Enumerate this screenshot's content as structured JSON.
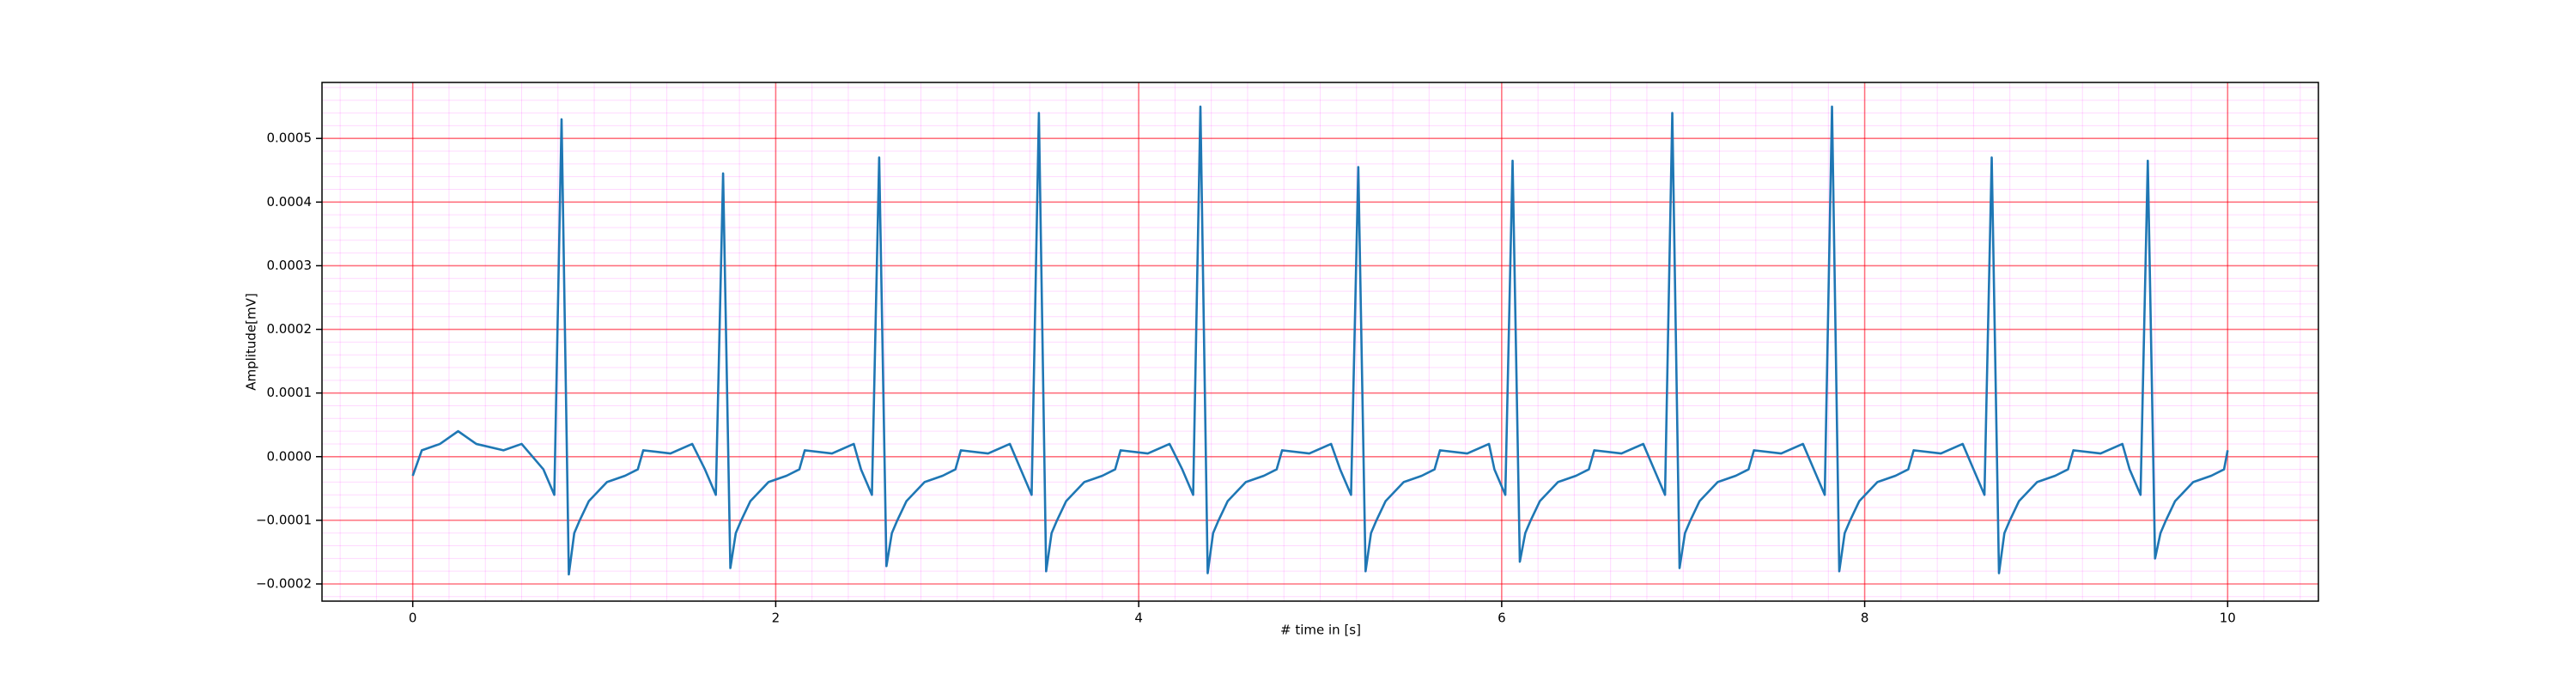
{
  "chart_data": {
    "type": "line",
    "x_label": "# time in [s]",
    "y_label": "Amplitude[mV]",
    "xlim": [
      -0.5,
      10.5
    ],
    "ylim": [
      -0.000227,
      0.000588
    ],
    "xticks": [
      0,
      2,
      4,
      6,
      8,
      10
    ],
    "yticks": [
      {
        "value": -0.0002,
        "label": "−0.0002"
      },
      {
        "value": -0.0001,
        "label": "−0.0001"
      },
      {
        "value": 0,
        "label": "0.0000"
      },
      0.0001,
      0.0002,
      0.0003,
      0.0004,
      0.0005
    ],
    "grid": true,
    "grid_color": "#ff0000",
    "minor_grid": {
      "x": 0.2,
      "y": 2e-05,
      "color": "#ff00ff"
    },
    "series": [
      {
        "color": "#1f77b4",
        "x": [
          0,
          0.05,
          0.15,
          0.25,
          0.35,
          0.5,
          0.6,
          0.72,
          0.78,
          0.82,
          0.86,
          0.89,
          0.92,
          0.97,
          1.07,
          1.17,
          1.24,
          1.27,
          1.42,
          1.54,
          1.61,
          1.67,
          1.71,
          1.75,
          1.78,
          1.81,
          1.86,
          1.96,
          2.06,
          2.13,
          2.16,
          2.31,
          2.43,
          2.47,
          2.53,
          2.57,
          2.61,
          2.64,
          2.67,
          2.72,
          2.82,
          2.92,
          2.99,
          3.02,
          3.17,
          3.29,
          3.35,
          3.41,
          3.45,
          3.49,
          3.52,
          3.55,
          3.6,
          3.7,
          3.8,
          3.87,
          3.9,
          4.05,
          4.17,
          4.24,
          4.3,
          4.34,
          4.38,
          4.41,
          4.44,
          4.49,
          4.59,
          4.69,
          4.76,
          4.79,
          4.94,
          5.06,
          5.11,
          5.17,
          5.21,
          5.25,
          5.28,
          5.31,
          5.36,
          5.46,
          5.56,
          5.63,
          5.66,
          5.81,
          5.93,
          5.96,
          6.02,
          6.06,
          6.1,
          6.13,
          6.16,
          6.21,
          6.31,
          6.41,
          6.48,
          6.51,
          6.66,
          6.78,
          6.84,
          6.9,
          6.94,
          6.98,
          7.01,
          7.04,
          7.09,
          7.19,
          7.29,
          7.36,
          7.39,
          7.54,
          7.66,
          7.72,
          7.78,
          7.82,
          7.86,
          7.89,
          7.92,
          7.97,
          8.07,
          8.17,
          8.24,
          8.27,
          8.42,
          8.54,
          8.6,
          8.66,
          8.7,
          8.74,
          8.77,
          8.8,
          8.85,
          8.95,
          9.05,
          9.12,
          9.15,
          9.3,
          9.42,
          9.46,
          9.52,
          9.56,
          9.6,
          9.63,
          9.66,
          9.71,
          9.81,
          9.91,
          9.98,
          10.0
        ],
        "values": [
          -3e-05,
          1e-05,
          2e-05,
          4e-05,
          2e-05,
          1e-05,
          2e-05,
          -2e-05,
          -6e-05,
          0.00053,
          -0.000185,
          -0.00012,
          -0.0001,
          -7e-05,
          -4e-05,
          -3e-05,
          -2e-05,
          1e-05,
          5e-06,
          2e-05,
          -2e-05,
          -6e-05,
          0.000445,
          -0.000175,
          -0.00012,
          -0.0001,
          -7e-05,
          -4e-05,
          -3e-05,
          -2e-05,
          1e-05,
          5e-06,
          2e-05,
          -2e-05,
          -6e-05,
          0.00047,
          -0.000172,
          -0.00012,
          -0.0001,
          -7e-05,
          -4e-05,
          -3e-05,
          -2e-05,
          1e-05,
          5e-06,
          2e-05,
          -2e-05,
          -6e-05,
          0.00054,
          -0.00018,
          -0.00012,
          -0.0001,
          -7e-05,
          -4e-05,
          -3e-05,
          -2e-05,
          1e-05,
          5e-06,
          2e-05,
          -2e-05,
          -6e-05,
          0.00055,
          -0.000183,
          -0.00012,
          -0.0001,
          -7e-05,
          -4e-05,
          -3e-05,
          -2e-05,
          1e-05,
          5e-06,
          2e-05,
          -2e-05,
          -6e-05,
          0.000455,
          -0.00018,
          -0.00012,
          -0.0001,
          -7e-05,
          -4e-05,
          -3e-05,
          -2e-05,
          1e-05,
          5e-06,
          2e-05,
          -2e-05,
          -6e-05,
          0.000465,
          -0.000165,
          -0.00012,
          -0.0001,
          -7e-05,
          -4e-05,
          -3e-05,
          -2e-05,
          1e-05,
          5e-06,
          2e-05,
          -2e-05,
          -6e-05,
          0.00054,
          -0.000175,
          -0.00012,
          -0.0001,
          -7e-05,
          -4e-05,
          -3e-05,
          -2e-05,
          1e-05,
          5e-06,
          2e-05,
          -2e-05,
          -6e-05,
          0.00055,
          -0.00018,
          -0.00012,
          -0.0001,
          -7e-05,
          -4e-05,
          -3e-05,
          -2e-05,
          1e-05,
          5e-06,
          2e-05,
          -2e-05,
          -6e-05,
          0.00047,
          -0.000183,
          -0.00012,
          -0.0001,
          -7e-05,
          -4e-05,
          -3e-05,
          -2e-05,
          1e-05,
          5e-06,
          2e-05,
          -2e-05,
          -6e-05,
          0.000465,
          -0.00016,
          -0.00012,
          -0.0001,
          -7e-05,
          -4e-05,
          -3e-05,
          -2e-05,
          1e-05
        ]
      }
    ]
  }
}
